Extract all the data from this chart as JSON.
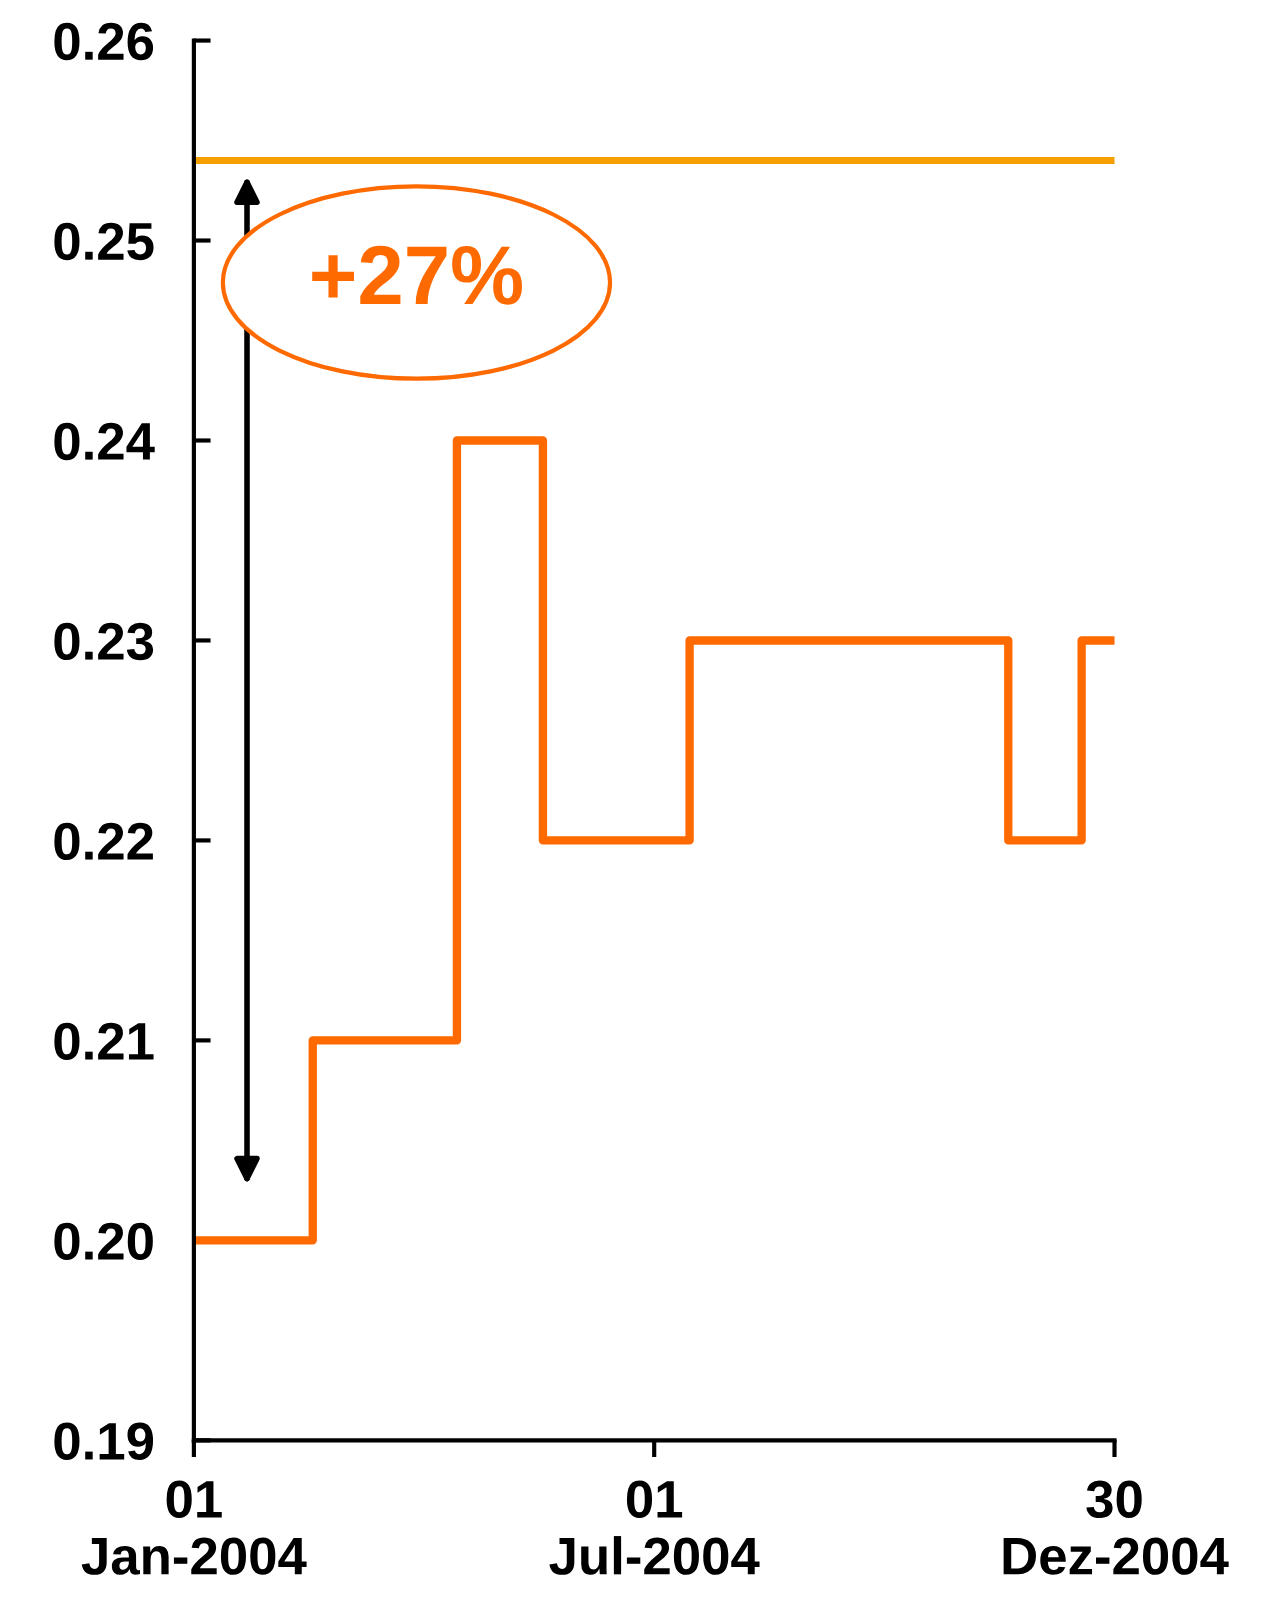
{
  "chart_data": {
    "type": "step",
    "series": [
      {
        "color": "#ff6a00",
        "x": [
          "2004-01-01",
          "2004-02-17",
          "2004-04-14",
          "2004-05-18",
          "2004-07-15",
          "2004-11-18",
          "2004-12-17",
          "2004-12-30"
        ],
        "values": [
          0.2,
          0.21,
          0.24,
          0.22,
          0.23,
          0.22,
          0.23,
          0.23
        ]
      }
    ],
    "xlim": [
      "2004-01-01",
      "2004-12-30"
    ],
    "xticks": [
      {
        "value": "2004-01-01",
        "label": "01\nJan-2004"
      },
      {
        "value": "2004-07-01",
        "label": "01\nJul-2004"
      },
      {
        "value": "2004-12-30",
        "label": "30\nDez-2004"
      }
    ],
    "ylim": [
      0.19,
      0.26
    ],
    "yticks": [
      {
        "value": 0.19,
        "label": "0.19"
      },
      {
        "value": 0.2,
        "label": "0.20"
      },
      {
        "value": 0.21,
        "label": "0.21"
      },
      {
        "value": 0.22,
        "label": "0.22"
      },
      {
        "value": 0.23,
        "label": "0.23"
      },
      {
        "value": 0.24,
        "label": "0.24"
      },
      {
        "value": 0.25,
        "label": "0.25"
      },
      {
        "value": 0.26,
        "label": "0.26"
      }
    ],
    "ref_lines": [
      {
        "axis": "y",
        "value": 0.254,
        "color": "#f5a000"
      }
    ],
    "annotations": [
      "+27%"
    ],
    "grid": false,
    "legend": false
  }
}
